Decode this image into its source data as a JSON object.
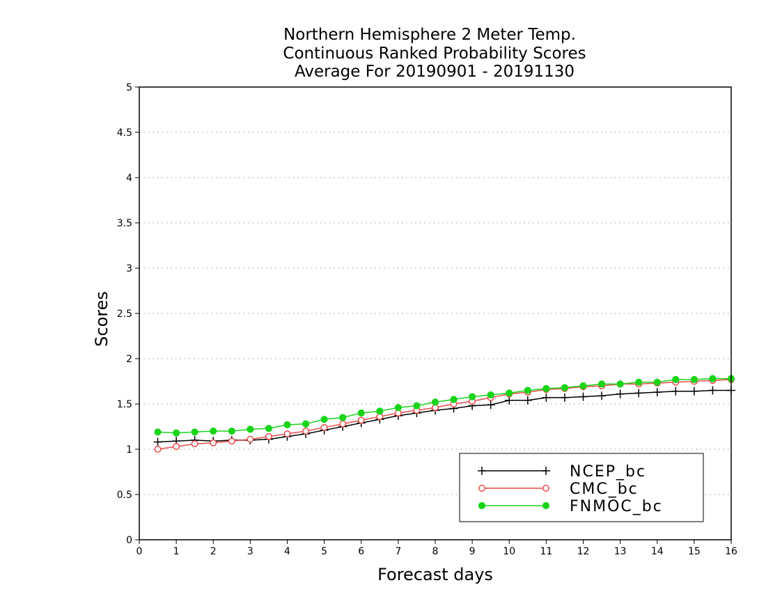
{
  "chart_data": {
    "type": "line",
    "title": [
      "Northern Hemisphere 2 Meter Temp.",
      "Continuous Ranked Probability Scores",
      "Average For 20190901 - 20191130"
    ],
    "xlabel": "Forecast days",
    "ylabel": "Scores",
    "xlim": [
      0,
      16
    ],
    "ylim": [
      0,
      5
    ],
    "xticks": [
      "0",
      "1",
      "2",
      "3",
      "4",
      "5",
      "6",
      "7",
      "8",
      "9",
      "10",
      "11",
      "12",
      "13",
      "14",
      "15",
      "16"
    ],
    "yticks": [
      "0",
      "0.5",
      "1",
      "1.5",
      "2",
      "2.5",
      "3",
      "3.5",
      "4",
      "4.5",
      "5"
    ],
    "grid": true,
    "legend_position": "bottom-right",
    "x": [
      0.5,
      1,
      1.5,
      2,
      2.5,
      3,
      3.5,
      4,
      4.5,
      5,
      5.5,
      6,
      6.5,
      7,
      7.5,
      8,
      8.5,
      9,
      9.5,
      10,
      10.5,
      11,
      11.5,
      12,
      12.5,
      13,
      13.5,
      14,
      14.5,
      15,
      15.5,
      16
    ],
    "series": [
      {
        "name": "NCEP_bc",
        "color": "#000000",
        "marker": "plus",
        "values": [
          1.08,
          1.09,
          1.1,
          1.09,
          1.1,
          1.1,
          1.11,
          1.14,
          1.17,
          1.21,
          1.25,
          1.29,
          1.33,
          1.37,
          1.4,
          1.43,
          1.45,
          1.48,
          1.49,
          1.54,
          1.54,
          1.57,
          1.57,
          1.58,
          1.59,
          1.61,
          1.62,
          1.63,
          1.64,
          1.64,
          1.65,
          1.65
        ]
      },
      {
        "name": "CMC_bc",
        "color": "#e84a4a",
        "marker": "open-circle",
        "values": [
          1.0,
          1.03,
          1.06,
          1.07,
          1.09,
          1.11,
          1.14,
          1.17,
          1.2,
          1.24,
          1.28,
          1.32,
          1.36,
          1.4,
          1.43,
          1.46,
          1.5,
          1.53,
          1.57,
          1.61,
          1.63,
          1.66,
          1.67,
          1.69,
          1.7,
          1.72,
          1.72,
          1.73,
          1.74,
          1.75,
          1.76,
          1.77
        ]
      },
      {
        "name": "FNMOC_bc",
        "color": "#19d419",
        "marker": "filled-circle",
        "values": [
          1.19,
          1.18,
          1.19,
          1.2,
          1.2,
          1.22,
          1.23,
          1.27,
          1.28,
          1.33,
          1.35,
          1.4,
          1.42,
          1.46,
          1.48,
          1.52,
          1.55,
          1.58,
          1.6,
          1.62,
          1.65,
          1.67,
          1.68,
          1.7,
          1.72,
          1.72,
          1.74,
          1.74,
          1.77,
          1.77,
          1.78,
          1.78
        ]
      }
    ]
  }
}
